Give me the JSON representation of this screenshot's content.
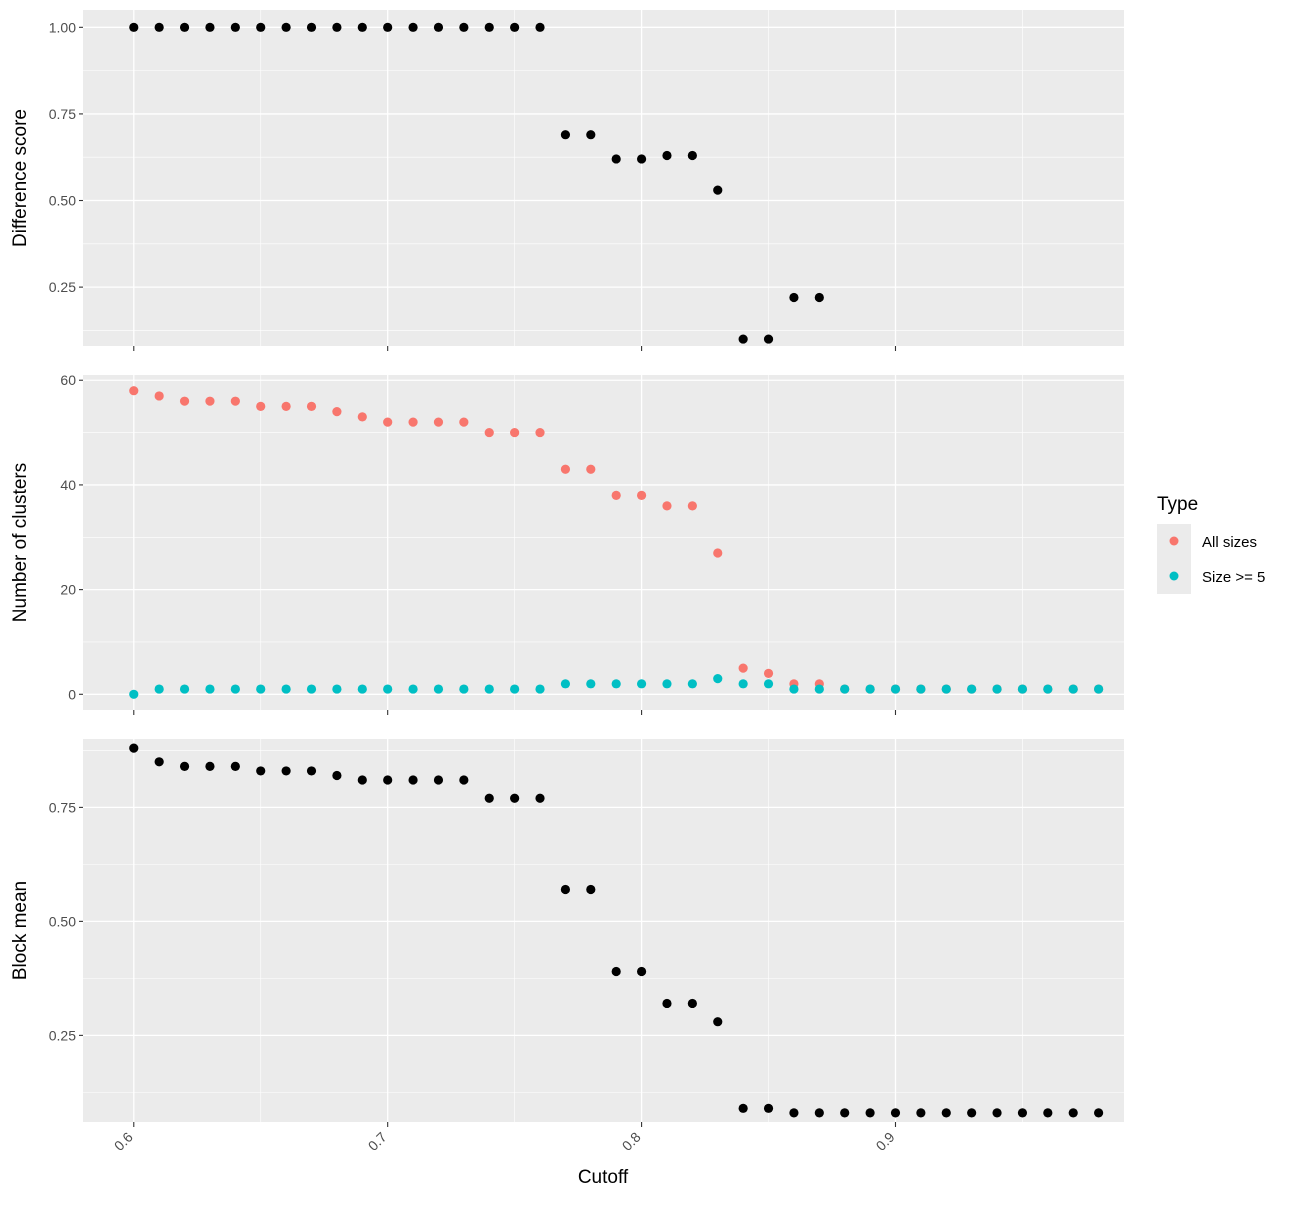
{
  "chart_data": {
    "type": "scatter",
    "facets": "stacked vertically, shared x axis",
    "xlabel": "Cutoff",
    "x_ticks": [
      "0.6",
      "0.7",
      "0.8",
      "0.9"
    ],
    "xlim": [
      0.58,
      0.99
    ],
    "grid": true,
    "legend": {
      "title": "Type",
      "placement": "right",
      "entries": [
        {
          "label": "All sizes",
          "color": "#F8766D"
        },
        {
          "label": "Size >= 5",
          "color": "#00BFC4"
        }
      ]
    },
    "panels": [
      {
        "ylabel": "Difference score",
        "ylim": [
          0.08,
          1.05
        ],
        "y_ticks": [
          "0.25",
          "0.50",
          "0.75",
          "1.00"
        ],
        "series": [
          {
            "color": "#000000",
            "points": [
              [
                0.6,
                1.0
              ],
              [
                0.61,
                1.0
              ],
              [
                0.62,
                1.0
              ],
              [
                0.63,
                1.0
              ],
              [
                0.64,
                1.0
              ],
              [
                0.65,
                1.0
              ],
              [
                0.66,
                1.0
              ],
              [
                0.67,
                1.0
              ],
              [
                0.68,
                1.0
              ],
              [
                0.69,
                1.0
              ],
              [
                0.7,
                1.0
              ],
              [
                0.71,
                1.0
              ],
              [
                0.72,
                1.0
              ],
              [
                0.73,
                1.0
              ],
              [
                0.74,
                1.0
              ],
              [
                0.75,
                1.0
              ],
              [
                0.76,
                1.0
              ],
              [
                0.77,
                0.69
              ],
              [
                0.78,
                0.69
              ],
              [
                0.79,
                0.62
              ],
              [
                0.8,
                0.62
              ],
              [
                0.81,
                0.63
              ],
              [
                0.82,
                0.63
              ],
              [
                0.83,
                0.53
              ],
              [
                0.84,
                0.1
              ],
              [
                0.85,
                0.1
              ],
              [
                0.86,
                0.22
              ],
              [
                0.87,
                0.22
              ]
            ]
          }
        ]
      },
      {
        "ylabel": "Number of clusters",
        "ylim": [
          -3,
          61
        ],
        "y_ticks": [
          "0",
          "20",
          "40",
          "60"
        ],
        "series": [
          {
            "name": "All sizes",
            "color": "#F8766D",
            "points": [
              [
                0.6,
                58
              ],
              [
                0.61,
                57
              ],
              [
                0.62,
                56
              ],
              [
                0.63,
                56
              ],
              [
                0.64,
                56
              ],
              [
                0.65,
                55
              ],
              [
                0.66,
                55
              ],
              [
                0.67,
                55
              ],
              [
                0.68,
                54
              ],
              [
                0.69,
                53
              ],
              [
                0.7,
                52
              ],
              [
                0.71,
                52
              ],
              [
                0.72,
                52
              ],
              [
                0.73,
                52
              ],
              [
                0.74,
                50
              ],
              [
                0.75,
                50
              ],
              [
                0.76,
                50
              ],
              [
                0.77,
                43
              ],
              [
                0.78,
                43
              ],
              [
                0.79,
                38
              ],
              [
                0.8,
                38
              ],
              [
                0.81,
                36
              ],
              [
                0.82,
                36
              ],
              [
                0.83,
                27
              ],
              [
                0.84,
                5
              ],
              [
                0.85,
                4
              ],
              [
                0.86,
                2
              ],
              [
                0.87,
                2
              ],
              [
                0.88,
                1
              ],
              [
                0.89,
                1
              ],
              [
                0.9,
                1
              ],
              [
                0.91,
                1
              ],
              [
                0.92,
                1
              ],
              [
                0.93,
                1
              ],
              [
                0.94,
                1
              ],
              [
                0.95,
                1
              ],
              [
                0.96,
                1
              ],
              [
                0.97,
                1
              ],
              [
                0.98,
                1
              ]
            ]
          },
          {
            "name": "Size >= 5",
            "color": "#00BFC4",
            "points": [
              [
                0.6,
                0
              ],
              [
                0.61,
                1
              ],
              [
                0.62,
                1
              ],
              [
                0.63,
                1
              ],
              [
                0.64,
                1
              ],
              [
                0.65,
                1
              ],
              [
                0.66,
                1
              ],
              [
                0.67,
                1
              ],
              [
                0.68,
                1
              ],
              [
                0.69,
                1
              ],
              [
                0.7,
                1
              ],
              [
                0.71,
                1
              ],
              [
                0.72,
                1
              ],
              [
                0.73,
                1
              ],
              [
                0.74,
                1
              ],
              [
                0.75,
                1
              ],
              [
                0.76,
                1
              ],
              [
                0.77,
                2
              ],
              [
                0.78,
                2
              ],
              [
                0.79,
                2
              ],
              [
                0.8,
                2
              ],
              [
                0.81,
                2
              ],
              [
                0.82,
                2
              ],
              [
                0.83,
                3
              ],
              [
                0.84,
                2
              ],
              [
                0.85,
                2
              ],
              [
                0.86,
                1
              ],
              [
                0.87,
                1
              ],
              [
                0.88,
                1
              ],
              [
                0.89,
                1
              ],
              [
                0.9,
                1
              ],
              [
                0.91,
                1
              ],
              [
                0.92,
                1
              ],
              [
                0.93,
                1
              ],
              [
                0.94,
                1
              ],
              [
                0.95,
                1
              ],
              [
                0.96,
                1
              ],
              [
                0.97,
                1
              ],
              [
                0.98,
                1
              ]
            ]
          }
        ]
      },
      {
        "ylabel": "Block mean",
        "ylim": [
          0.06,
          0.9
        ],
        "y_ticks": [
          "0.25",
          "0.50",
          "0.75"
        ],
        "series": [
          {
            "color": "#000000",
            "points": [
              [
                0.6,
                0.88
              ],
              [
                0.61,
                0.85
              ],
              [
                0.62,
                0.84
              ],
              [
                0.63,
                0.84
              ],
              [
                0.64,
                0.84
              ],
              [
                0.65,
                0.83
              ],
              [
                0.66,
                0.83
              ],
              [
                0.67,
                0.83
              ],
              [
                0.68,
                0.82
              ],
              [
                0.69,
                0.81
              ],
              [
                0.7,
                0.81
              ],
              [
                0.71,
                0.81
              ],
              [
                0.72,
                0.81
              ],
              [
                0.73,
                0.81
              ],
              [
                0.74,
                0.77
              ],
              [
                0.75,
                0.77
              ],
              [
                0.76,
                0.77
              ],
              [
                0.77,
                0.57
              ],
              [
                0.78,
                0.57
              ],
              [
                0.79,
                0.39
              ],
              [
                0.8,
                0.39
              ],
              [
                0.81,
                0.32
              ],
              [
                0.82,
                0.32
              ],
              [
                0.83,
                0.28
              ],
              [
                0.84,
                0.09
              ],
              [
                0.85,
                0.09
              ],
              [
                0.86,
                0.08
              ],
              [
                0.87,
                0.08
              ],
              [
                0.88,
                0.08
              ],
              [
                0.89,
                0.08
              ],
              [
                0.9,
                0.08
              ],
              [
                0.91,
                0.08
              ],
              [
                0.92,
                0.08
              ],
              [
                0.93,
                0.08
              ],
              [
                0.94,
                0.08
              ],
              [
                0.95,
                0.08
              ],
              [
                0.96,
                0.08
              ],
              [
                0.97,
                0.08
              ],
              [
                0.98,
                0.08
              ]
            ]
          }
        ]
      }
    ]
  }
}
